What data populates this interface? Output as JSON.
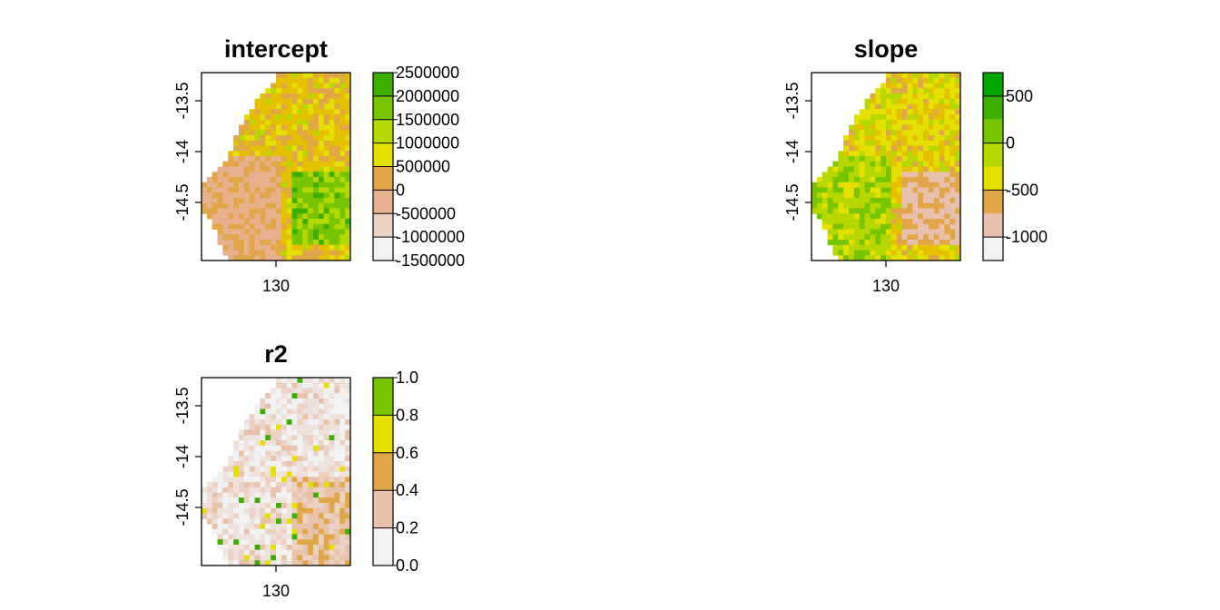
{
  "chart_data": [
    {
      "type": "heatmap",
      "title": "intercept",
      "x_ticks": [
        {
          "value": 130,
          "label": "130"
        }
      ],
      "y_ticks": [
        {
          "value": -13.5,
          "label": "-13.5"
        },
        {
          "value": -14,
          "label": "-14"
        },
        {
          "value": -14.5,
          "label": "-14.5"
        }
      ],
      "xlim": [
        129.75,
        130.3
      ],
      "ylim": [
        -14.9,
        -13.25
      ],
      "legend": {
        "breaks": [
          -1500000,
          -1000000,
          -500000,
          0,
          500000,
          1000000,
          1500000,
          2000000,
          2500000
        ],
        "tick_labels": [
          "-1500000",
          "-1000000",
          "-500000",
          "0",
          "500000",
          "1000000",
          "1500000",
          "2000000",
          "2500000"
        ],
        "colors": [
          "#f2f2f2",
          "#ecd2c4",
          "#e6b18c",
          "#e1a648",
          "#e5e000",
          "#b6d800",
          "#77c400",
          "#3caf00",
          "#00a600"
        ]
      },
      "grid": false
    },
    {
      "type": "heatmap",
      "title": "slope",
      "x_ticks": [
        {
          "value": 130,
          "label": "130"
        }
      ],
      "y_ticks": [
        {
          "value": -13.5,
          "label": "-13.5"
        },
        {
          "value": -14,
          "label": "-14"
        },
        {
          "value": -14.5,
          "label": "-14.5"
        }
      ],
      "xlim": [
        129.75,
        130.3
      ],
      "ylim": [
        -14.9,
        -13.25
      ],
      "legend": {
        "breaks": [
          -1250,
          -1000,
          -750,
          -500,
          -250,
          0,
          250,
          500,
          750
        ],
        "tick_labels": [
          "-1000",
          "-500",
          "0",
          "500"
        ],
        "tick_values": [
          -1000,
          -500,
          0,
          500
        ],
        "colors": [
          "#f2f2f2",
          "#e9bfae",
          "#e1a648",
          "#e5e000",
          "#b6d800",
          "#77c400",
          "#3caf00",
          "#00a600"
        ]
      },
      "grid": false
    },
    {
      "type": "heatmap",
      "title": "r2",
      "x_ticks": [
        {
          "value": 130,
          "label": "130"
        }
      ],
      "y_ticks": [
        {
          "value": -13.5,
          "label": "-13.5"
        },
        {
          "value": -14,
          "label": "-14"
        },
        {
          "value": -14.5,
          "label": "-14.5"
        }
      ],
      "xlim": [
        129.75,
        130.3
      ],
      "ylim": [
        -14.9,
        -13.25
      ],
      "legend": {
        "breaks": [
          0.0,
          0.2,
          0.4,
          0.6,
          0.8,
          1.0
        ],
        "tick_labels": [
          "0.0",
          "0.2",
          "0.4",
          "0.6",
          "0.8",
          "1.0"
        ],
        "colors": [
          "#f2f2f2",
          "#e9c2ab",
          "#e1a648",
          "#e5e000",
          "#77c400",
          "#00a600"
        ]
      },
      "grid": false
    }
  ]
}
